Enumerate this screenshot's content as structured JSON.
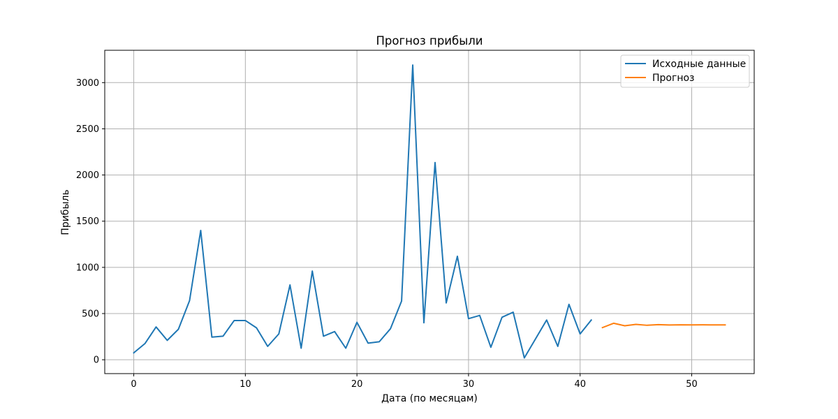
{
  "chart_data": {
    "type": "line",
    "title": "Прогноз прибыли",
    "xlabel": "Дата (по месяцам)",
    "ylabel": "Прибыль",
    "xlim": [
      -2.6,
      55.6
    ],
    "ylim": [
      -150,
      3350
    ],
    "x_ticks": [
      0,
      10,
      20,
      30,
      40,
      50
    ],
    "y_ticks": [
      0,
      500,
      1000,
      1500,
      2000,
      2500,
      3000
    ],
    "grid": true,
    "legend_position": "top-right",
    "series": [
      {
        "name": "Исходные данные",
        "color": "#1f77b4",
        "x": [
          0,
          1,
          2,
          3,
          4,
          5,
          6,
          7,
          8,
          9,
          10,
          11,
          12,
          13,
          14,
          15,
          16,
          17,
          18,
          19,
          20,
          21,
          22,
          23,
          24,
          25,
          26,
          27,
          28,
          29,
          30,
          31,
          32,
          33,
          34,
          35,
          36,
          37,
          38,
          39,
          40,
          41
        ],
        "y": [
          75,
          175,
          355,
          210,
          330,
          640,
          1400,
          245,
          255,
          425,
          425,
          345,
          145,
          280,
          810,
          125,
          960,
          255,
          305,
          125,
          405,
          180,
          195,
          335,
          635,
          3190,
          400,
          2135,
          615,
          1120,
          445,
          480,
          135,
          460,
          515,
          20,
          225,
          430,
          145,
          600,
          280,
          430
        ]
      },
      {
        "name": "Прогноз",
        "color": "#ff7f0e",
        "x": [
          42,
          43,
          44,
          45,
          46,
          47,
          48,
          49,
          50,
          51,
          52,
          53
        ],
        "y": [
          348,
          395,
          368,
          383,
          373,
          380,
          376,
          378,
          377,
          378,
          377,
          377
        ]
      }
    ]
  }
}
